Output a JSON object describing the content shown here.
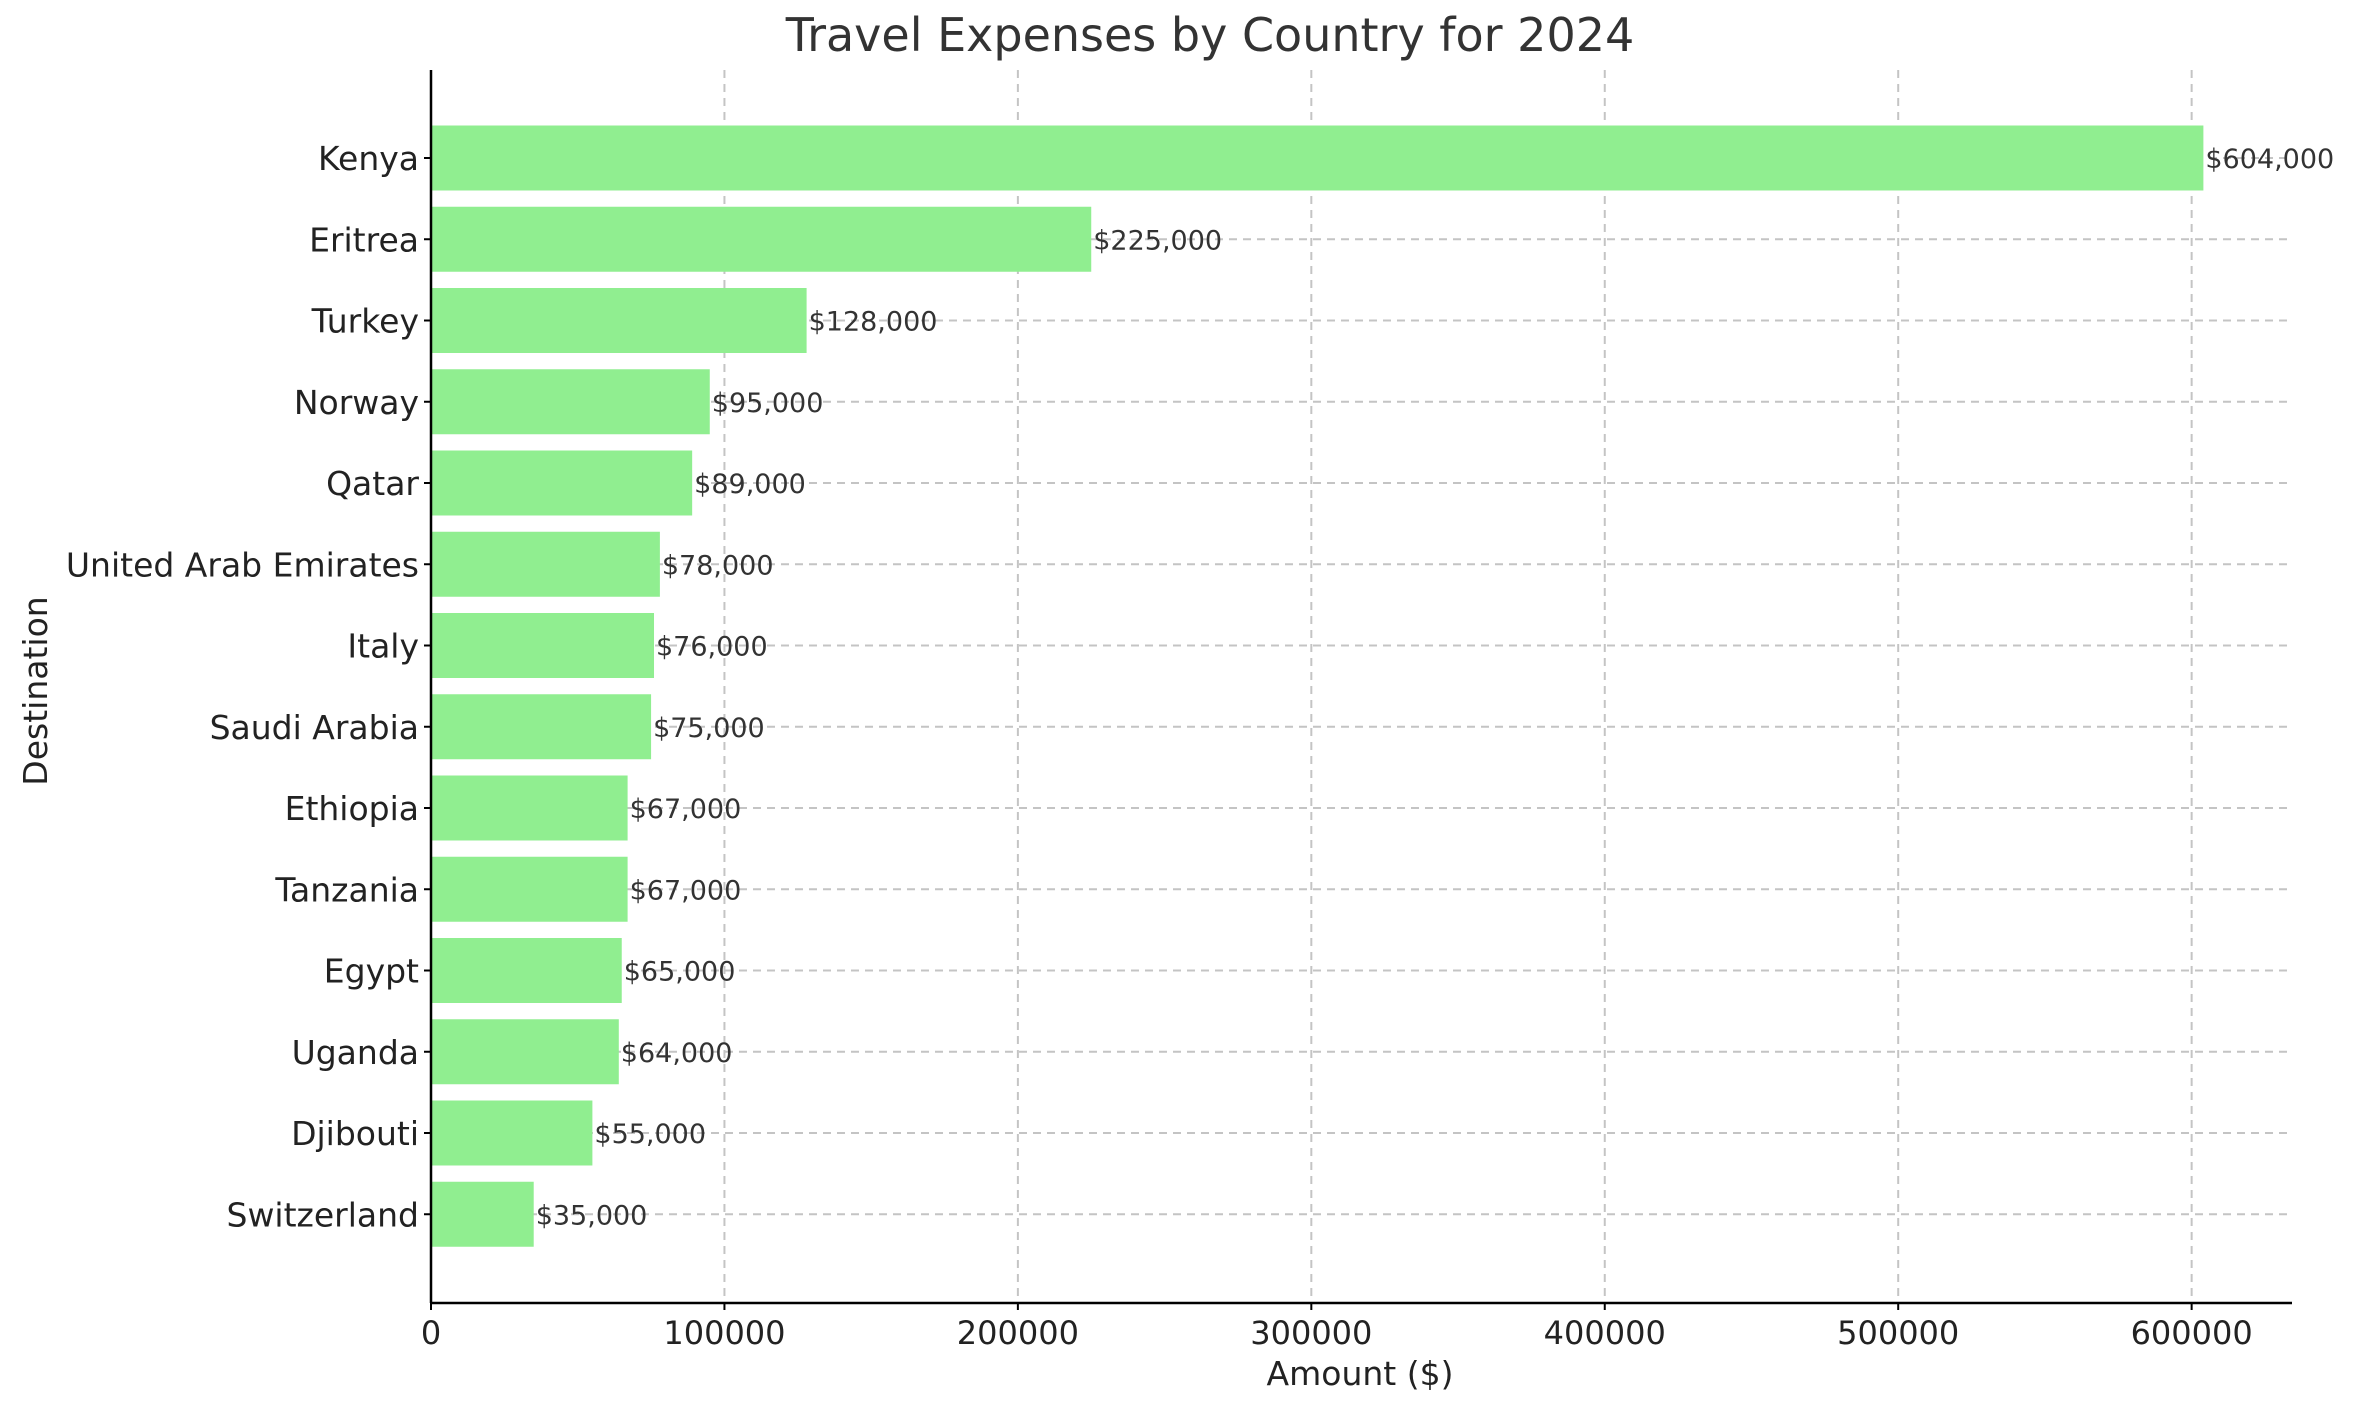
{
  "chart_data": {
    "type": "bar",
    "orientation": "horizontal",
    "title": "Travel Expenses by Country for 2024",
    "xlabel": "Amount ($)",
    "ylabel": "Destination",
    "categories": [
      "Kenya",
      "Eritrea",
      "Turkey",
      "Norway",
      "Qatar",
      "United Arab Emirates",
      "Italy",
      "Saudi Arabia",
      "Ethiopia",
      "Tanzania",
      "Egypt",
      "Uganda",
      "Djibouti",
      "Switzerland"
    ],
    "values": [
      604000,
      225000,
      128000,
      95000,
      89000,
      78000,
      76000,
      75000,
      67000,
      67000,
      65000,
      64000,
      55000,
      35000
    ],
    "data_labels": [
      "$604,000",
      "$225,000",
      "$128,000",
      "$95,000",
      "$89,000",
      "$78,000",
      "$76,000",
      "$75,000",
      "$67,000",
      "$67,000",
      "$65,000",
      "$64,000",
      "$55,000",
      "$35,000"
    ],
    "xticks": [
      0,
      100000,
      200000,
      300000,
      400000,
      500000,
      600000
    ],
    "xtick_labels": [
      "0",
      "100000",
      "200000",
      "300000",
      "400000",
      "500000",
      "600000"
    ],
    "xlim": [
      0,
      634200
    ],
    "grid": true,
    "bar_color": "#90ee90"
  }
}
